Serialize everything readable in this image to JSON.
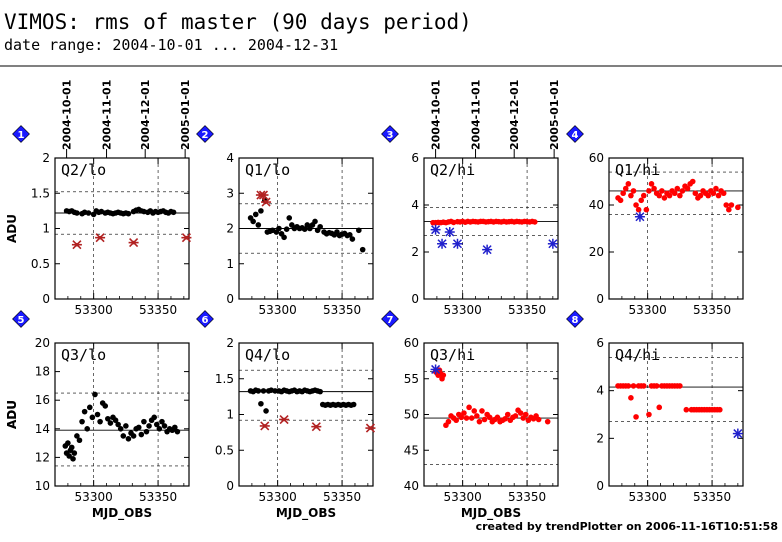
{
  "title": "VIMOS: rms of master (90 days period)",
  "subtitle": "date range: 2004-10-01 ... 2004-12-31",
  "footer": "created by trendPlotter on 2006-11-16T10:51:58",
  "date_ticks": [
    "2004-10-01",
    "2004-11-01",
    "2004-12-01",
    "2005-01-01"
  ],
  "colors": {
    "normal": "#000000",
    "outlier": "#ff0000",
    "flagged": "#b22222",
    "marker": "#2020cc",
    "badge": "#1a1aff"
  },
  "chart_data": [
    {
      "type": "scatter",
      "index": "1",
      "label": "Q2/lo",
      "ylabel": "ADU",
      "xlabel": "",
      "xlim": [
        53270,
        53374
      ],
      "ylim": [
        0,
        2
      ],
      "yticks": [
        0,
        0.5,
        1,
        1.5,
        2
      ],
      "xticks": [
        53300,
        53350
      ],
      "ref_line": 1.22,
      "dash_lines": [
        0.92,
        1.52
      ],
      "series": [
        {
          "marker": "dot",
          "color": "#000000",
          "x": [
            53279,
            53281,
            53283,
            53285,
            53287,
            53291,
            53293,
            53296,
            53300,
            53302,
            53304,
            53306,
            53309,
            53311,
            53313,
            53315,
            53317,
            53319,
            53321,
            53323,
            53325,
            53327,
            53331,
            53333,
            53335,
            53337,
            53339,
            53342,
            53344,
            53346,
            53348,
            53350,
            53352,
            53354,
            53356,
            53358,
            53360,
            53362
          ],
          "y": [
            1.25,
            1.24,
            1.25,
            1.23,
            1.22,
            1.21,
            1.23,
            1.22,
            1.2,
            1.25,
            1.23,
            1.24,
            1.22,
            1.23,
            1.22,
            1.21,
            1.22,
            1.23,
            1.22,
            1.21,
            1.22,
            1.21,
            1.24,
            1.26,
            1.27,
            1.25,
            1.24,
            1.23,
            1.25,
            1.22,
            1.24,
            1.23,
            1.24,
            1.25,
            1.23,
            1.22,
            1.24,
            1.23
          ]
        },
        {
          "marker": "star",
          "color": "#b22222",
          "x": [
            53287,
            53305,
            53331,
            53372
          ],
          "y": [
            0.77,
            0.87,
            0.8,
            0.87
          ]
        }
      ]
    },
    {
      "type": "scatter",
      "index": "2",
      "label": "Q1/lo",
      "ylabel": "",
      "xlabel": "",
      "xlim": [
        53270,
        53374
      ],
      "ylim": [
        0,
        4
      ],
      "yticks": [
        0,
        1,
        2,
        3,
        4
      ],
      "xticks": [
        53300,
        53350
      ],
      "ref_line": 2.0,
      "dash_lines": [
        1.3,
        2.7
      ],
      "series": [
        {
          "marker": "dot",
          "color": "#000000",
          "x": [
            53279,
            53281,
            53283,
            53285,
            53287,
            53290,
            53292,
            53294,
            53296,
            53299,
            53301,
            53303,
            53305,
            53307,
            53309,
            53311,
            53313,
            53315,
            53317,
            53319,
            53321,
            53323,
            53325,
            53327,
            53329,
            53331,
            53333,
            53336,
            53338,
            53340,
            53342,
            53344,
            53346,
            53348,
            53350,
            53352,
            53354,
            53356,
            53358,
            53363,
            53366
          ],
          "y": [
            2.3,
            2.2,
            2.4,
            2.1,
            2.5,
            2.8,
            1.9,
            1.92,
            1.95,
            1.9,
            2.0,
            1.85,
            1.75,
            1.98,
            2.3,
            2.1,
            2.0,
            2.05,
            2.0,
            2.02,
            1.98,
            2.1,
            2.0,
            2.1,
            2.2,
            1.95,
            2.05,
            1.9,
            1.85,
            1.88,
            1.86,
            1.82,
            1.9,
            1.8,
            1.84,
            1.86,
            1.8,
            1.82,
            1.7,
            1.95,
            1.4
          ]
        },
        {
          "marker": "star",
          "color": "#b22222",
          "x": [
            53287,
            53289,
            53291
          ],
          "y": [
            2.95,
            2.95,
            2.75
          ]
        }
      ]
    },
    {
      "type": "scatter",
      "index": "3",
      "label": "Q2/hi",
      "ylabel": "",
      "xlabel": "",
      "xlim": [
        53270,
        53374
      ],
      "ylim": [
        0,
        6
      ],
      "yticks": [
        0,
        2,
        4,
        6
      ],
      "xticks": [
        53300,
        53350
      ],
      "ref_line": 3.3,
      "dash_lines": [
        2.7,
        3.9
      ],
      "series": [
        {
          "marker": "dot",
          "color": "#ff0000",
          "x": [
            53277,
            53279,
            53281,
            53283,
            53285,
            53287,
            53289,
            53291,
            53293,
            53296,
            53298,
            53300,
            53302,
            53304,
            53306,
            53308,
            53310,
            53312,
            53314,
            53316,
            53318,
            53320,
            53322,
            53324,
            53326,
            53328,
            53330,
            53332,
            53334,
            53336,
            53338,
            53340,
            53342,
            53344,
            53346,
            53348,
            53350,
            53352,
            53354,
            53356
          ],
          "y": [
            3.25,
            3.25,
            3.26,
            3.25,
            3.27,
            3.25,
            3.28,
            3.3,
            3.26,
            3.29,
            3.28,
            3.3,
            3.27,
            3.3,
            3.28,
            3.3,
            3.29,
            3.28,
            3.3,
            3.3,
            3.28,
            3.29,
            3.3,
            3.28,
            3.3,
            3.29,
            3.28,
            3.3,
            3.28,
            3.29,
            3.3,
            3.28,
            3.3,
            3.29,
            3.28,
            3.3,
            3.29,
            3.28,
            3.3,
            3.28
          ]
        },
        {
          "marker": "asterisk",
          "color": "#2020cc",
          "x": [
            53279,
            53284,
            53290,
            53296,
            53319,
            53370
          ],
          "y": [
            2.95,
            2.35,
            2.85,
            2.35,
            2.1,
            2.35
          ]
        }
      ]
    },
    {
      "type": "scatter",
      "index": "4",
      "label": "Q1/hi",
      "ylabel": "",
      "xlabel": "",
      "xlim": [
        53270,
        53374
      ],
      "ylim": [
        0,
        60
      ],
      "yticks": [
        0,
        20,
        40,
        60
      ],
      "xticks": [
        53300,
        53350
      ],
      "ref_line": 46,
      "dash_lines": [
        36,
        54
      ],
      "series": [
        {
          "marker": "dot",
          "color": "#ff0000",
          "x": [
            53277,
            53279,
            53281,
            53283,
            53285,
            53287,
            53289,
            53291,
            53293,
            53295,
            53297,
            53299,
            53301,
            53303,
            53305,
            53307,
            53309,
            53311,
            53313,
            53315,
            53317,
            53319,
            53321,
            53323,
            53325,
            53327,
            53329,
            53331,
            53333,
            53335,
            53337,
            53339,
            53341,
            53343,
            53345,
            53347,
            53349,
            53351,
            53353,
            53355,
            53357,
            53359,
            53361,
            53363,
            53365,
            53370
          ],
          "y": [
            43,
            42,
            45,
            47,
            49,
            44,
            46,
            40,
            38,
            42,
            44,
            38,
            46,
            49,
            47,
            45,
            44,
            46,
            43,
            45,
            44,
            46,
            45,
            47,
            44,
            46,
            48,
            47,
            49,
            50,
            45,
            43,
            44,
            46,
            45,
            44,
            46,
            45,
            47,
            44,
            46,
            45,
            40,
            38,
            40,
            39
          ]
        },
        {
          "marker": "asterisk",
          "color": "#2020cc",
          "x": [
            53294
          ],
          "y": [
            35
          ]
        }
      ]
    },
    {
      "type": "scatter",
      "index": "5",
      "label": "Q3/lo",
      "ylabel": "ADU",
      "xlabel": "MJD_OBS",
      "xlim": [
        53270,
        53374
      ],
      "ylim": [
        10,
        20
      ],
      "yticks": [
        10,
        12,
        14,
        16,
        18,
        20
      ],
      "xticks": [
        53300,
        53350
      ],
      "ref_line": 13.9,
      "dash_lines": [
        11.4,
        16.5
      ],
      "series": [
        {
          "marker": "dot",
          "color": "#000000",
          "x": [
            53278,
            53279,
            53280,
            53281,
            53282,
            53283,
            53284,
            53285,
            53287,
            53289,
            53291,
            53293,
            53295,
            53297,
            53299,
            53301,
            53303,
            53305,
            53307,
            53309,
            53311,
            53313,
            53315,
            53317,
            53319,
            53321,
            53323,
            53325,
            53327,
            53329,
            53331,
            53333,
            53335,
            53337,
            53339,
            53341,
            53343,
            53345,
            53347,
            53349,
            53351,
            53353,
            53355,
            53357,
            53359,
            53361,
            53363,
            53365
          ],
          "y": [
            12.8,
            12.3,
            13.0,
            12.1,
            12.5,
            12.7,
            11.9,
            12.3,
            13.5,
            13.2,
            14.5,
            15.2,
            14.0,
            15.5,
            14.8,
            16.4,
            15.0,
            14.5,
            15.8,
            15.6,
            14.7,
            14.4,
            14.8,
            14.6,
            14.3,
            14.0,
            13.5,
            14.2,
            13.3,
            13.7,
            13.5,
            14.0,
            14.1,
            13.6,
            14.5,
            13.8,
            14.2,
            14.6,
            14.8,
            14.3,
            14.0,
            14.5,
            14.2,
            13.8,
            14.0,
            13.9,
            14.1,
            13.8
          ]
        }
      ]
    },
    {
      "type": "scatter",
      "index": "6",
      "label": "Q4/lo",
      "ylabel": "",
      "xlabel": "MJD_OBS",
      "xlim": [
        53270,
        53374
      ],
      "ylim": [
        0,
        2
      ],
      "yticks": [
        0,
        0.5,
        1,
        1.5,
        2
      ],
      "xticks": [
        53300,
        53350
      ],
      "ref_line": 1.32,
      "dash_lines": [
        0.92,
        1.62
      ],
      "series": [
        {
          "marker": "dot",
          "color": "#000000",
          "x": [
            53279,
            53281,
            53283,
            53285,
            53287,
            53289,
            53291,
            53293,
            53295,
            53298,
            53301,
            53303,
            53305,
            53307,
            53309,
            53311,
            53313,
            53315,
            53317,
            53319,
            53321,
            53323,
            53325,
            53327,
            53329,
            53331,
            53333,
            53335,
            53337,
            53339,
            53341,
            53343,
            53345,
            53347,
            53349,
            53351,
            53353,
            53355,
            53357,
            53359
          ],
          "y": [
            1.33,
            1.32,
            1.34,
            1.33,
            1.15,
            1.33,
            1.05,
            1.33,
            1.34,
            1.33,
            1.33,
            1.32,
            1.34,
            1.33,
            1.32,
            1.33,
            1.34,
            1.32,
            1.33,
            1.32,
            1.34,
            1.33,
            1.32,
            1.33,
            1.34,
            1.33,
            1.32,
            1.14,
            1.13,
            1.14,
            1.13,
            1.14,
            1.13,
            1.14,
            1.13,
            1.14,
            1.13,
            1.14,
            1.13,
            1.14
          ]
        },
        {
          "marker": "star",
          "color": "#b22222",
          "x": [
            53290,
            53305,
            53330,
            53372
          ],
          "y": [
            0.84,
            0.93,
            0.83,
            0.81
          ]
        }
      ]
    },
    {
      "type": "scatter",
      "index": "7",
      "label": "Q3/hi",
      "ylabel": "ADU",
      "xlabel": "MJD_OBS",
      "xlim": [
        53270,
        53374
      ],
      "ylim": [
        40,
        60
      ],
      "yticks": [
        40,
        45,
        50,
        55,
        60
      ],
      "xticks": [
        53300,
        53350
      ],
      "ref_line": 49.5,
      "dash_lines": [
        43,
        56
      ],
      "series": [
        {
          "marker": "dot",
          "color": "#ff0000",
          "x": [
            53279,
            53280,
            53281,
            53282,
            53283,
            53284,
            53285,
            53287,
            53289,
            53291,
            53293,
            53295,
            53297,
            53299,
            53301,
            53303,
            53305,
            53307,
            53309,
            53311,
            53313,
            53315,
            53317,
            53319,
            53321,
            53323,
            53325,
            53327,
            53329,
            53331,
            53333,
            53335,
            53337,
            53339,
            53341,
            53343,
            53345,
            53347,
            53349,
            53351,
            53353,
            53355,
            53357,
            53359,
            53366
          ],
          "y": [
            56.0,
            55.8,
            55.5,
            56.2,
            55.7,
            55.0,
            55.5,
            48.5,
            49.0,
            49.8,
            49.5,
            49.2,
            50.0,
            49.6,
            50.2,
            49.5,
            51.0,
            49.5,
            50.5,
            49.8,
            49.0,
            50.5,
            49.3,
            50.0,
            49.6,
            49.0,
            49.3,
            49.6,
            49.0,
            49.2,
            49.4,
            50.0,
            49.2,
            49.6,
            49.8,
            50.6,
            50.2,
            49.5,
            50.0,
            49.2,
            49.6,
            49.4,
            49.8,
            49.3,
            49.0
          ]
        },
        {
          "marker": "asterisk",
          "color": "#2020cc",
          "x": [
            53279
          ],
          "y": [
            56.3
          ]
        }
      ]
    },
    {
      "type": "scatter",
      "index": "8",
      "label": "Q4/hi",
      "ylabel": "",
      "xlabel": "",
      "xlim": [
        53270,
        53374
      ],
      "ylim": [
        0,
        6
      ],
      "yticks": [
        0,
        2,
        4,
        6
      ],
      "xticks": [
        53300,
        53350
      ],
      "ref_line": 4.15,
      "dash_lines": [
        2.7,
        5.4
      ],
      "series": [
        {
          "marker": "dot",
          "color": "#ff0000",
          "x": [
            53277,
            53279,
            53281,
            53283,
            53285,
            53287,
            53289,
            53291,
            53293,
            53295,
            53297,
            53301,
            53303,
            53305,
            53307,
            53309,
            53311,
            53313,
            53315,
            53317,
            53319,
            53321,
            53323,
            53325,
            53330,
            53334,
            53336,
            53338,
            53340,
            53342,
            53344,
            53346,
            53348,
            53350,
            53352,
            53354,
            53356
          ],
          "y": [
            4.2,
            4.2,
            4.2,
            4.2,
            4.2,
            3.7,
            4.2,
            2.9,
            4.2,
            4.2,
            4.2,
            3.0,
            4.2,
            4.2,
            4.2,
            3.3,
            4.2,
            4.2,
            4.2,
            4.2,
            4.2,
            4.2,
            4.2,
            4.2,
            3.2,
            3.2,
            3.2,
            3.2,
            3.2,
            3.2,
            3.2,
            3.2,
            3.2,
            3.2,
            3.2,
            3.2,
            3.2
          ]
        },
        {
          "marker": "asterisk",
          "color": "#2020cc",
          "x": [
            53370
          ],
          "y": [
            2.2
          ]
        }
      ]
    }
  ]
}
